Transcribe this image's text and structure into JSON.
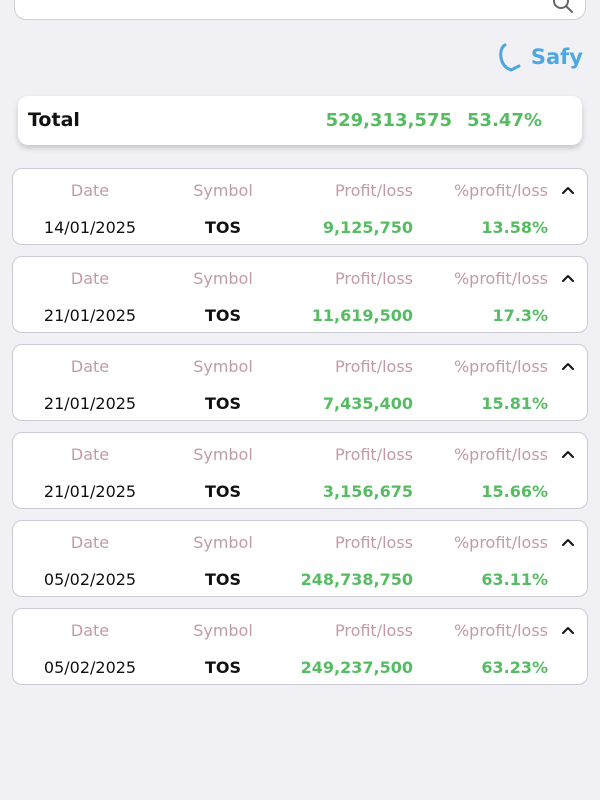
{
  "search": {
    "placeholder": ""
  },
  "brand": {
    "name": "Safy",
    "color": "#4da8e0"
  },
  "total": {
    "label": "Total",
    "value": "529,313,575",
    "percent": "53.47%"
  },
  "columns": {
    "date": "Date",
    "symbol": "Symbol",
    "profit": "Profit/loss",
    "percent": "%profit/loss"
  },
  "trades": [
    {
      "date": "14/01/2025",
      "symbol": "TOS",
      "profit": "9,125,750",
      "percent": "13.58%"
    },
    {
      "date": "21/01/2025",
      "symbol": "TOS",
      "profit": "11,619,500",
      "percent": "17.3%"
    },
    {
      "date": "21/01/2025",
      "symbol": "TOS",
      "profit": "7,435,400",
      "percent": "15.81%"
    },
    {
      "date": "21/01/2025",
      "symbol": "TOS",
      "profit": "3,156,675",
      "percent": "15.66%"
    },
    {
      "date": "05/02/2025",
      "symbol": "TOS",
      "profit": "248,738,750",
      "percent": "63.11%"
    },
    {
      "date": "05/02/2025",
      "symbol": "TOS",
      "profit": "249,237,500",
      "percent": "63.23%"
    }
  ],
  "colors": {
    "profit_positive": "#56bc62",
    "header_text": "#c39aa8",
    "background": "#f0f0f5"
  },
  "icons": {
    "search": "search-icon",
    "toggle": "chevron-up-icon",
    "logo": "safy-logo-icon"
  }
}
